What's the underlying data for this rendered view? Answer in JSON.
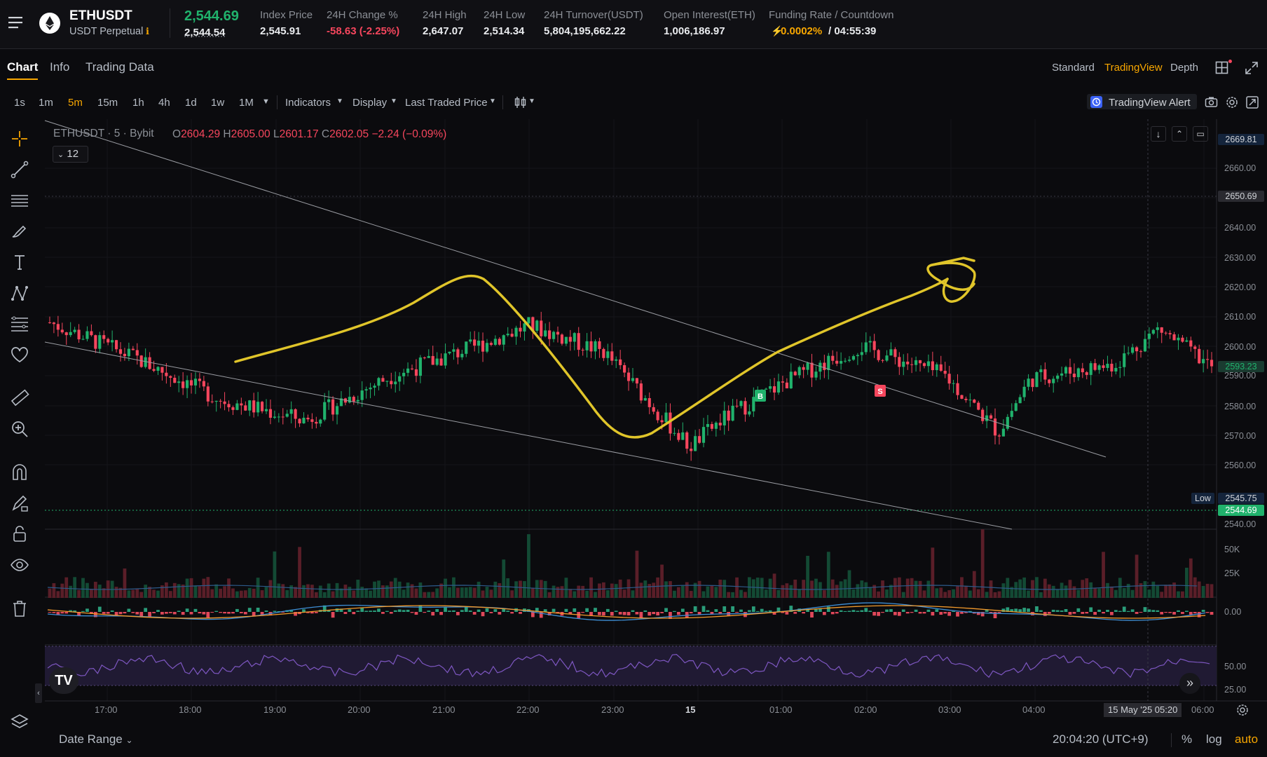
{
  "header": {
    "symbol": "ETHUSDT",
    "contract": "USDT Perpetual",
    "last_price": "2,544.69",
    "mark_price": "2,544.54",
    "stats": [
      {
        "label": "Index Price",
        "value": "2,545.91"
      },
      {
        "label": "24H Change %",
        "value": "-58.63 (-2.25%)"
      },
      {
        "label": "24H High",
        "value": "2,647.07"
      },
      {
        "label": "24H Low",
        "value": "2,514.34"
      },
      {
        "label": "24H Turnover(USDT)",
        "value": "5,804,195,662.22"
      },
      {
        "label": "Open Interest(ETH)",
        "value": "1,006,186.97"
      },
      {
        "label": "Funding Rate / Countdown",
        "value_rate": "0.0002%",
        "value_countdown": "/ 04:55:39"
      }
    ]
  },
  "tabs": [
    "Chart",
    "Info",
    "Trading Data"
  ],
  "views": [
    "Standard",
    "TradingView",
    "Depth"
  ],
  "intervals": [
    "1s",
    "1m",
    "5m",
    "15m",
    "1h",
    "4h",
    "1d",
    "1w",
    "1M"
  ],
  "toolbar": {
    "indicators": "Indicators",
    "display": "Display",
    "price_type": "Last Traded Price",
    "alert": "TradingView Alert"
  },
  "legend": {
    "symbol": "ETHUSDT",
    "interval": "5",
    "exchange": "Bybit",
    "o": "2604.29",
    "h": "2605.00",
    "l": "2601.17",
    "c": "2602.05",
    "chg": "−2.24 (−0.09%)",
    "collapse": "12"
  },
  "colors": {
    "up": "#20b26c",
    "down": "#f6465d",
    "accent": "#f7a600",
    "drawing": "#e0c52a"
  },
  "price_axis": [
    "2660.00",
    "2640.00",
    "2630.00",
    "2620.00",
    "2610.00",
    "2600.00",
    "2590.00",
    "2580.00",
    "2570.00",
    "2560.00",
    "2540.00"
  ],
  "price_tags": {
    "top": "2669.81",
    "level": "2650.69",
    "current": "2593.23",
    "low_label": "Low",
    "low": "2545.75",
    "last": "2544.69"
  },
  "volume_axis": [
    "50K",
    "25K"
  ],
  "macd_axis": "0.00",
  "rsi_axis": [
    "50.00",
    "25.00"
  ],
  "time_axis": [
    "17:00",
    "18:00",
    "19:00",
    "20:00",
    "21:00",
    "22:00",
    "23:00",
    "15",
    "01:00",
    "02:00",
    "03:00",
    "04:00",
    "06:00"
  ],
  "crosshair_time": "15 May '25   05:20",
  "markers": {
    "buy": "B",
    "sell": "S"
  },
  "footer": {
    "date_range": "Date Range",
    "clock": "20:04:20 (UTC+9)",
    "pct": "%",
    "log": "log",
    "auto": "auto"
  },
  "chart_data": {
    "type": "candlestick",
    "interval": "5m",
    "series": [
      {
        "name": "ETHUSDT",
        "close_path": [
          [
            0,
            2608
          ],
          [
            40,
            2596
          ],
          [
            80,
            2582
          ],
          [
            120,
            2575
          ],
          [
            160,
            2590
          ],
          [
            200,
            2600
          ],
          [
            225,
            2607
          ],
          [
            260,
            2598
          ],
          [
            280,
            2582
          ],
          [
            300,
            2566
          ],
          [
            315,
            2575
          ],
          [
            345,
            2588
          ],
          [
            380,
            2600
          ],
          [
            400,
            2595
          ],
          [
            420,
            2590
          ],
          [
            445,
            2571
          ],
          [
            460,
            2589
          ],
          [
            500,
            2594
          ],
          [
            520,
            2606
          ],
          [
            545,
            2593
          ]
        ]
      }
    ],
    "ylim": [
      2535,
      2672
    ]
  }
}
